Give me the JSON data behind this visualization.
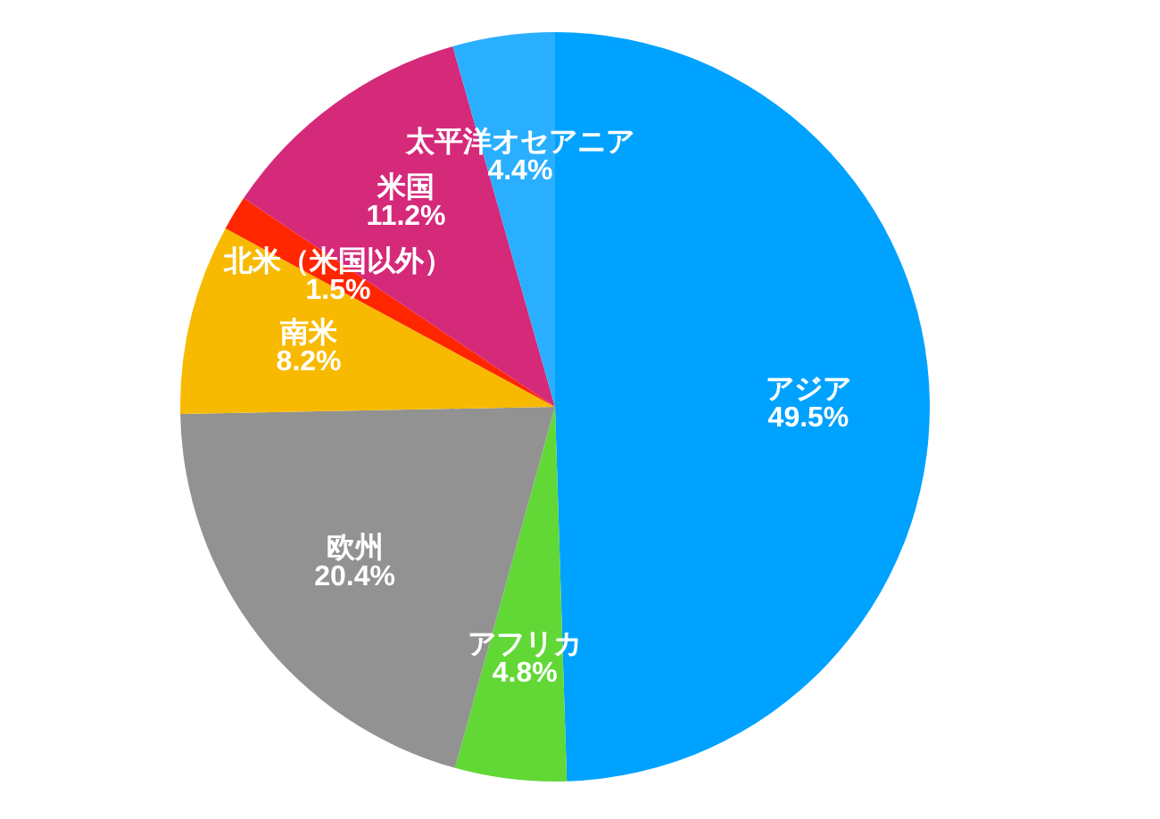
{
  "chart_data": {
    "type": "pie",
    "categories": [
      "アジア",
      "アフリカ",
      "欧州",
      "南米",
      "北米（米国以外）",
      "米国",
      "太平洋オセアニア"
    ],
    "values": [
      49.5,
      4.8,
      20.4,
      8.2,
      1.5,
      11.2,
      4.4
    ],
    "colors": [
      "#00a2ff",
      "#61d836",
      "#929292",
      "#f8ba00",
      "#ff2600",
      "#d5297a",
      "#2aafff"
    ],
    "value_labels": [
      "49.5%",
      "4.8%",
      "20.4%",
      "8.2%",
      "1.5%",
      "11.2%",
      "4.4%"
    ]
  }
}
